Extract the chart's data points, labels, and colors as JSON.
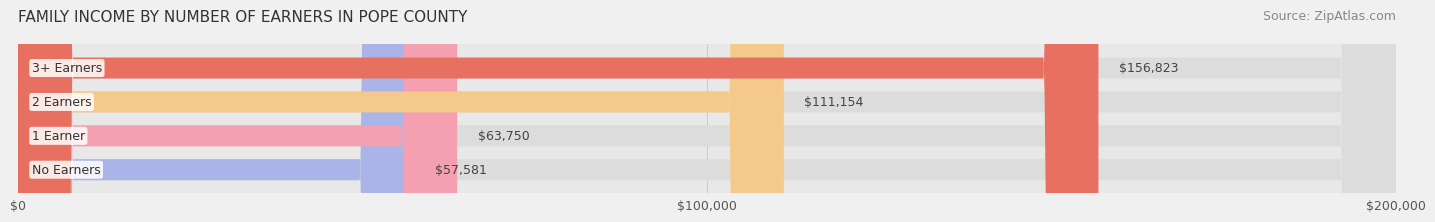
{
  "title": "FAMILY INCOME BY NUMBER OF EARNERS IN POPE COUNTY",
  "source": "Source: ZipAtlas.com",
  "categories": [
    "No Earners",
    "1 Earner",
    "2 Earners",
    "3+ Earners"
  ],
  "values": [
    57581,
    63750,
    111154,
    156823
  ],
  "bar_colors": [
    "#aab4e8",
    "#f4a0b0",
    "#f5c98a",
    "#e87060"
  ],
  "bar_edge_colors": [
    "#9099cc",
    "#e08898",
    "#e0b070",
    "#cc5545"
  ],
  "label_colors": [
    "#aab4e8",
    "#f4a0b0",
    "#f5c98a",
    "#e87060"
  ],
  "value_labels": [
    "$57,581",
    "$63,750",
    "$111,154",
    "$156,823"
  ],
  "xlim": [
    0,
    200000
  ],
  "xticks": [
    0,
    100000,
    200000
  ],
  "xtick_labels": [
    "$0",
    "$100,000",
    "$200,000"
  ],
  "background_color": "#f0f0f0",
  "bar_background_color": "#e8e8e8",
  "title_fontsize": 11,
  "source_fontsize": 9,
  "tick_fontsize": 9,
  "bar_label_fontsize": 9,
  "value_label_fontsize": 9
}
